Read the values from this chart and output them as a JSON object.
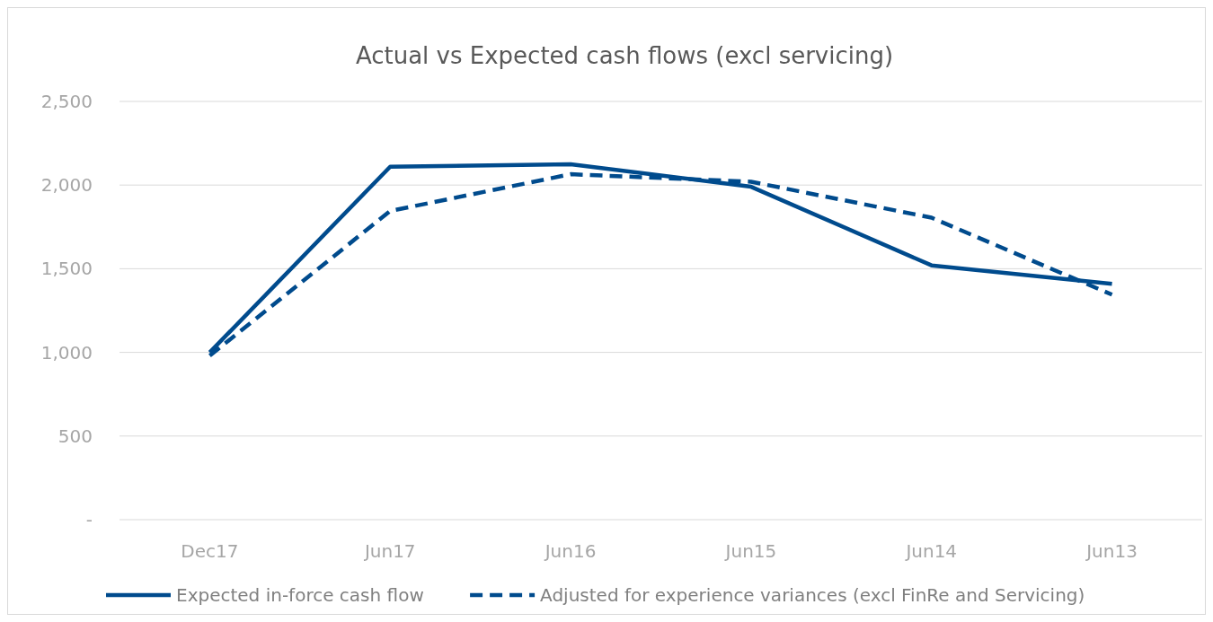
{
  "chart_data": {
    "type": "line",
    "title": "Actual vs Expected cash flows (excl servicing)",
    "categories": [
      "Dec17",
      "Jun17",
      "Jun16",
      "Jun15",
      "Jun14",
      "Jun13"
    ],
    "series": [
      {
        "name": "Expected in-force cash flow",
        "color": "#004b8d",
        "line_style": "solid",
        "values": [
          1000,
          2110,
          2125,
          1990,
          1520,
          1410
        ]
      },
      {
        "name": "Adjusted for experience variances (excl FinRe and Servicing)",
        "color": "#004b8d",
        "line_style": "dashed",
        "values": [
          980,
          1845,
          2065,
          2020,
          1805,
          1345
        ]
      }
    ],
    "ylim": [
      0,
      2500
    ],
    "yticks": [
      {
        "value": 0,
        "label": "-"
      },
      {
        "value": 500,
        "label": "500"
      },
      {
        "value": 1000,
        "label": "1,000"
      },
      {
        "value": 1500,
        "label": "1,500"
      },
      {
        "value": 2000,
        "label": "2,000"
      },
      {
        "value": 2500,
        "label": "2,500"
      }
    ],
    "grid": "y",
    "legend": "bottom",
    "marker": "none"
  }
}
